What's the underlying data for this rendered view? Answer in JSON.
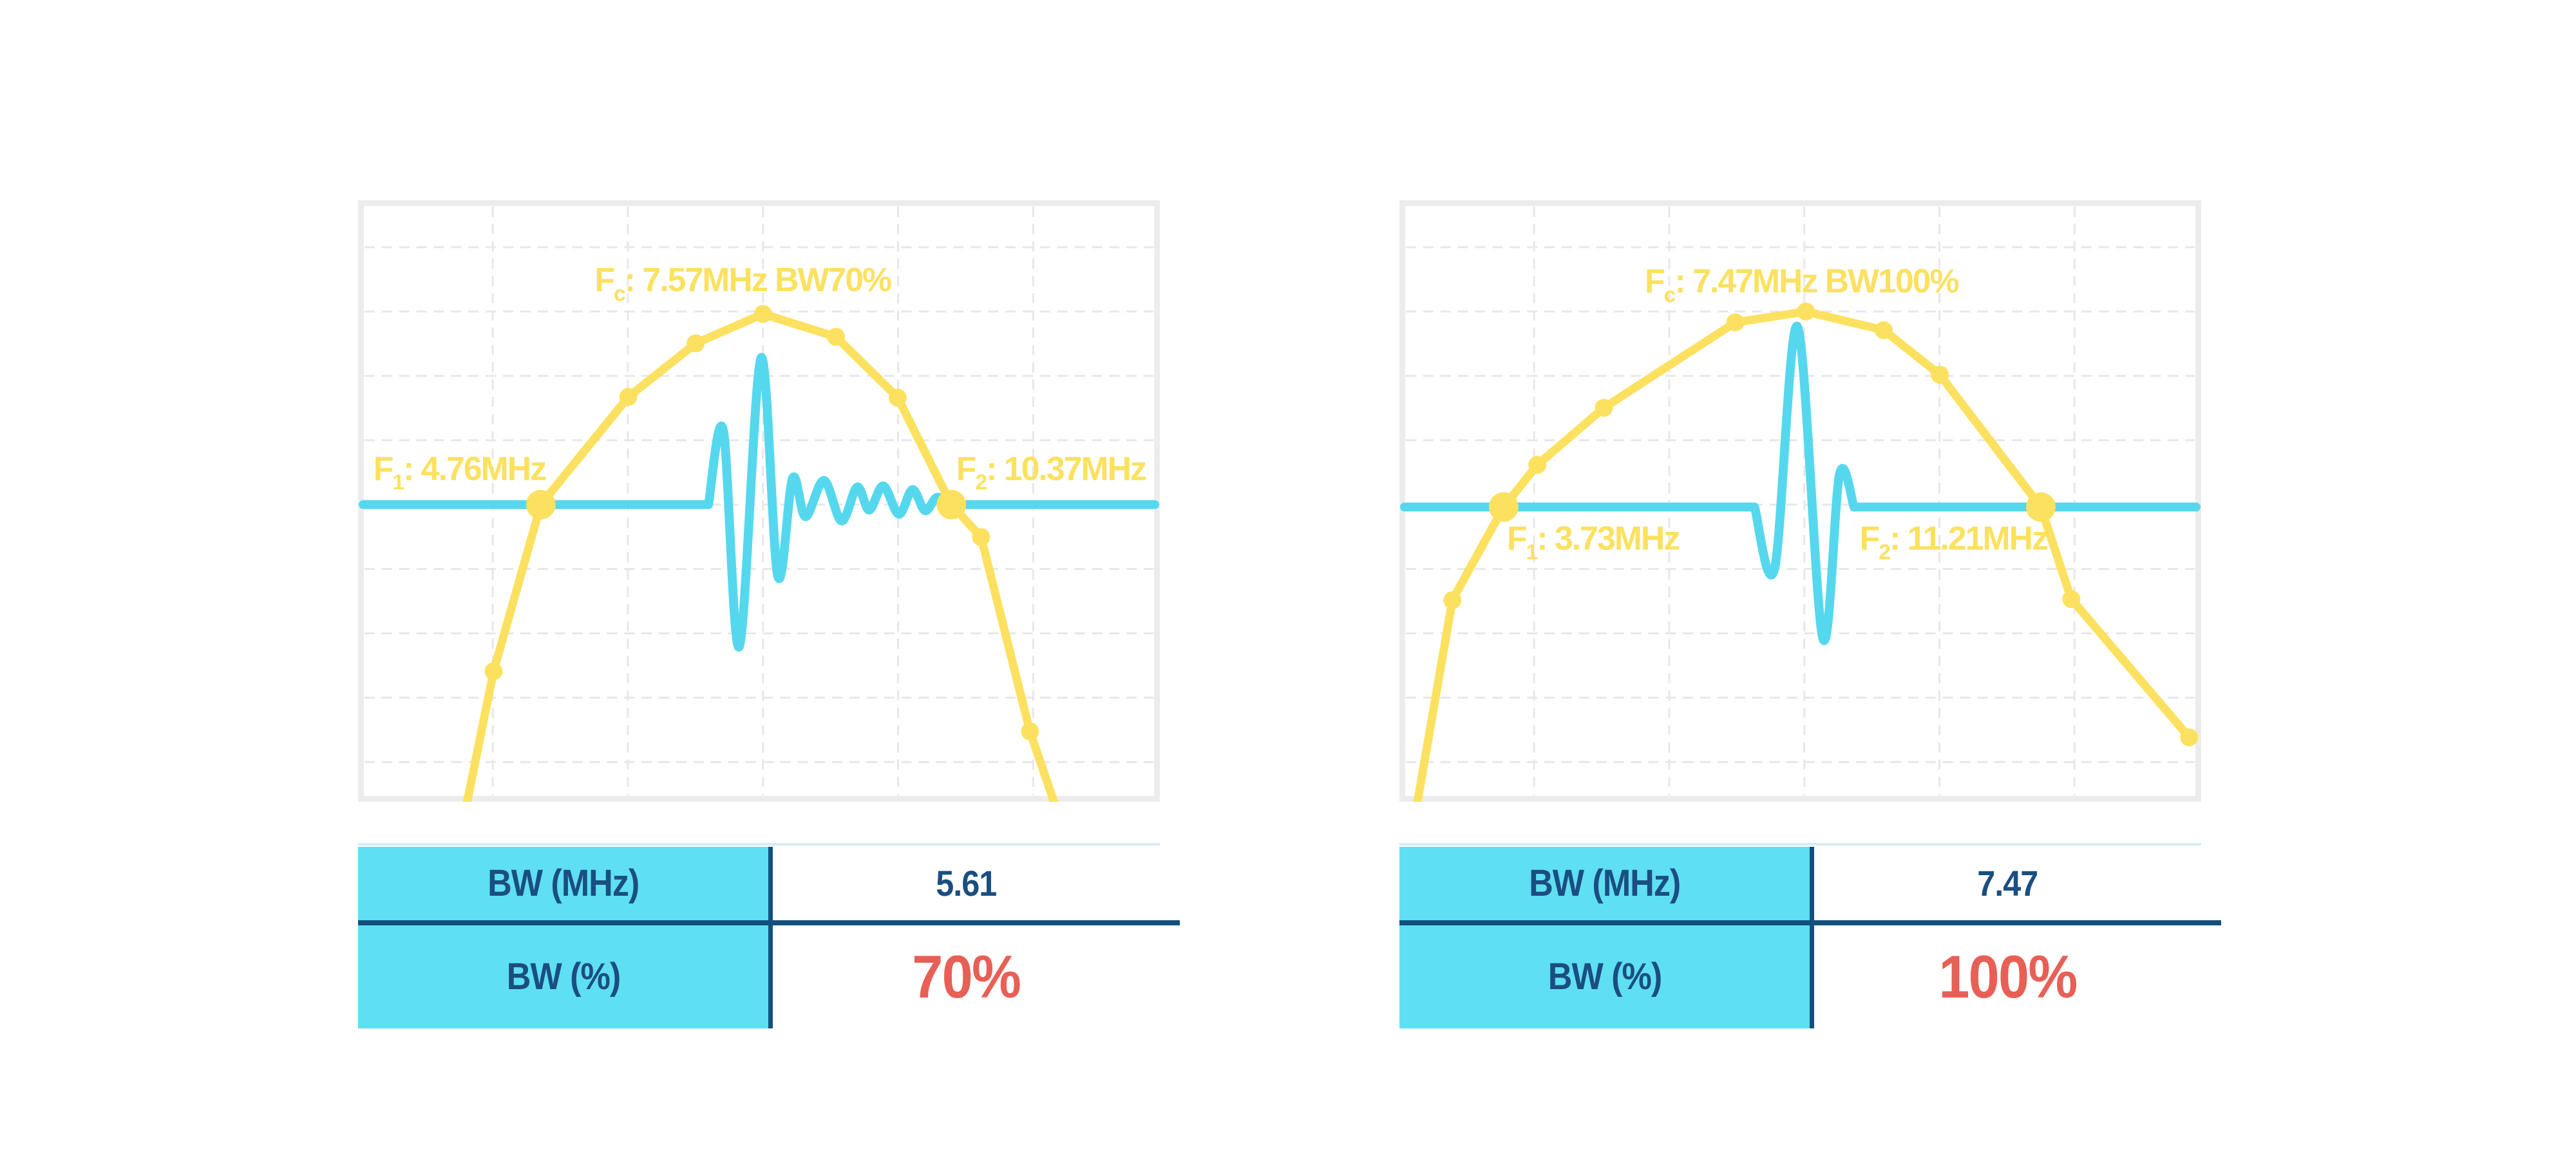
{
  "page": {
    "background": "#ffffff"
  },
  "colors": {
    "spectrum_yellow": "#fbe15f",
    "pulse_cyan": "#55d8ee",
    "table_cell_cyan": "#5fdff2",
    "navy_text": "#1b4e80",
    "divider_navy": "#14507e",
    "red_percent": "#e85f55",
    "panel_border": "#ececec",
    "grid_line": "#e7e7e7",
    "table_top_line": "#d5edf5"
  },
  "charts": [
    {
      "name": "bw-70-percent-figure",
      "annotations": {
        "fc": {
          "main": "F",
          "sub": "c",
          "rest": ": 7.57MHz BW70%",
          "xf": 0.295,
          "yf": 0.151
        },
        "f1": {
          "main": "F",
          "sub": "1",
          "rest": ": 4.76MHz",
          "xf": 0.019,
          "yf": 0.465
        },
        "f2": {
          "main": "F",
          "sub": "2",
          "rest": ": 10.37MHz",
          "xf": 0.746,
          "yf": 0.465
        }
      },
      "table": {
        "rows": [
          {
            "label": "BW (MHz)",
            "value": "5.61",
            "value_style": "navy"
          },
          {
            "label": "BW (%)",
            "value": "70%",
            "value_style": "red"
          }
        ]
      }
    },
    {
      "name": "bw-100-percent-figure",
      "annotations": {
        "fc": {
          "main": "F",
          "sub": "c",
          "rest": ": 7.47MHz BW100%",
          "xf": 0.306,
          "yf": 0.153
        },
        "f1": {
          "main": "F",
          "sub": "1",
          "rest": ": 3.73MHz",
          "xf": 0.134,
          "yf": 0.581
        },
        "f2": {
          "main": "F",
          "sub": "2",
          "rest": ": 11.21MHz",
          "xf": 0.574,
          "yf": 0.581
        }
      },
      "table": {
        "rows": [
          {
            "label": "BW (MHz)",
            "value": "7.47",
            "value_style": "navy"
          },
          {
            "label": "BW (%)",
            "value": "100%",
            "value_style": "red"
          }
        ]
      }
    }
  ],
  "chart_data": [
    {
      "type": "line",
      "title": "Fc: 7.57MHz BW70%",
      "x_unit": "MHz",
      "fc_mhz": 7.57,
      "f1_mhz": 4.76,
      "f2_mhz": 10.37,
      "bw_mhz": 5.61,
      "bw_pct": 70,
      "note": "xf/yf are fractions of plot area (top-left origin); cyan baseline is the -6dB level",
      "grid": {
        "vertical_xf": [
          0.168,
          0.3365,
          0.505,
          0.6735,
          0.842
        ],
        "horizontal_yf": [
          0.078,
          0.185,
          0.292,
          0.399,
          0.506,
          0.613,
          0.72,
          0.827,
          0.934
        ]
      },
      "spectrum": {
        "name": "frequency-spectrum",
        "color": "#fbe15f",
        "path_f": [
          [
            0.133,
            1.02
          ],
          [
            0.169,
            0.783
          ],
          [
            0.228,
            0.506
          ],
          [
            0.337,
            0.327
          ],
          [
            0.421,
            0.238
          ],
          [
            0.505,
            0.189
          ],
          [
            0.596,
            0.227
          ],
          [
            0.673,
            0.328
          ],
          [
            0.74,
            0.506
          ],
          [
            0.777,
            0.56
          ],
          [
            0.838,
            0.883
          ],
          [
            0.873,
            1.02
          ]
        ],
        "points_mhz": [
          3.72,
          4.11,
          4.76,
          5.95,
          6.87,
          7.79,
          8.79,
          9.64,
          10.37,
          10.78,
          11.44,
          11.83
        ],
        "markers_small_f": [
          [
            0.169,
            0.783
          ],
          [
            0.337,
            0.327
          ],
          [
            0.421,
            0.238
          ],
          [
            0.505,
            0.189
          ],
          [
            0.596,
            0.227
          ],
          [
            0.673,
            0.328
          ],
          [
            0.777,
            0.56
          ],
          [
            0.838,
            0.883
          ]
        ],
        "markers_big_f": [
          [
            0.228,
            0.506
          ],
          [
            0.74,
            0.506
          ]
        ]
      },
      "pulse": {
        "name": "pulse-echo-waveform",
        "color": "#55d8ee",
        "baseline_yf": 0.506,
        "start_xf": 0.437,
        "end_xf": 0.737,
        "extrema_f": [
          [
            0.4555,
            0.382
          ],
          [
            0.4755,
            0.742
          ],
          [
            0.5025,
            0.262
          ],
          [
            0.5235,
            0.625
          ],
          [
            0.542,
            0.462
          ],
          [
            0.558,
            0.526
          ],
          [
            0.581,
            0.466
          ],
          [
            0.603,
            0.533
          ],
          [
            0.6225,
            0.477
          ],
          [
            0.6375,
            0.515
          ],
          [
            0.655,
            0.475
          ],
          [
            0.6745,
            0.522
          ],
          [
            0.6915,
            0.481
          ],
          [
            0.707,
            0.516
          ],
          [
            0.722,
            0.494
          ]
        ]
      }
    },
    {
      "type": "line",
      "title": "Fc: 7.47MHz BW100%",
      "x_unit": "MHz",
      "fc_mhz": 7.47,
      "f1_mhz": 3.73,
      "f2_mhz": 11.21,
      "bw_mhz": 7.47,
      "bw_pct": 100,
      "note": "xf/yf are fractions of plot area (top-left origin); cyan baseline is the -6dB level",
      "grid": {
        "vertical_xf": [
          0.168,
          0.3365,
          0.505,
          0.6735,
          0.842
        ],
        "horizontal_yf": [
          0.078,
          0.185,
          0.292,
          0.399,
          0.506,
          0.613,
          0.72,
          0.827,
          0.934
        ]
      },
      "spectrum": {
        "name": "frequency-spectrum",
        "color": "#fbe15f",
        "path_f": [
          [
            0.02,
            1.02
          ],
          [
            0.066,
            0.665
          ],
          [
            0.13,
            0.51
          ],
          [
            0.172,
            0.44
          ],
          [
            0.255,
            0.345
          ],
          [
            0.419,
            0.203
          ],
          [
            0.507,
            0.185
          ],
          [
            0.604,
            0.216
          ],
          [
            0.674,
            0.29
          ],
          [
            0.8,
            0.51
          ],
          [
            0.838,
            0.663
          ],
          [
            0.985,
            0.893
          ]
        ],
        "points_mhz": [
          2.43,
          2.95,
          3.73,
          4.15,
          5.08,
          6.92,
          7.91,
          9.01,
          9.79,
          11.21,
          11.64,
          13.29
        ],
        "markers_small_f": [
          [
            0.066,
            0.665
          ],
          [
            0.172,
            0.44
          ],
          [
            0.255,
            0.345
          ],
          [
            0.419,
            0.203
          ],
          [
            0.507,
            0.185
          ],
          [
            0.604,
            0.216
          ],
          [
            0.674,
            0.29
          ],
          [
            0.838,
            0.663
          ],
          [
            0.985,
            0.893
          ]
        ],
        "markers_big_f": [
          [
            0.13,
            0.51
          ],
          [
            0.8,
            0.51
          ]
        ]
      },
      "pulse": {
        "name": "pulse-echo-waveform",
        "color": "#55d8ee",
        "baseline_yf": 0.51,
        "start_xf": 0.443,
        "end_xf": 0.567,
        "extrema_f": [
          [
            0.468,
            0.612
          ],
          [
            0.4965,
            0.21
          ],
          [
            0.528,
            0.728
          ],
          [
            0.549,
            0.455
          ]
        ]
      }
    }
  ]
}
